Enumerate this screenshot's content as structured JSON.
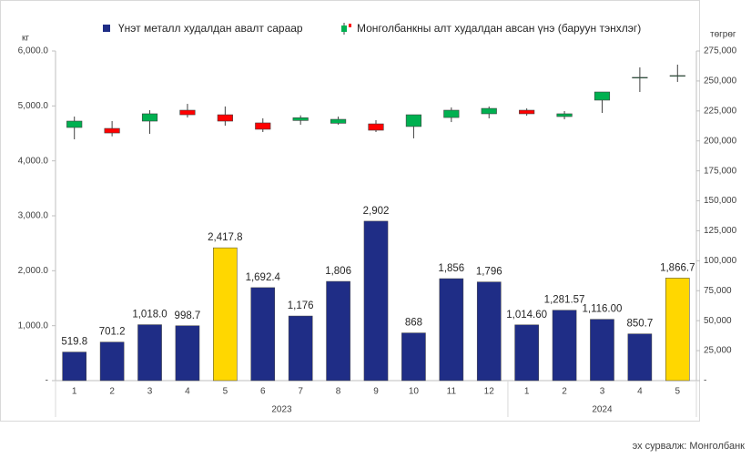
{
  "chart_data": {
    "type": "bar_candlestick",
    "y_axis_label": "кг",
    "y2_axis_label": "төгрөг",
    "source": "эх сурвалж: Монголбанк",
    "categories": [
      "1",
      "2",
      "3",
      "4",
      "5",
      "6",
      "7",
      "8",
      "9",
      "10",
      "11",
      "12",
      "1",
      "2",
      "3",
      "4",
      "5"
    ],
    "x_groups": [
      {
        "label": "2023",
        "size": 12
      },
      {
        "label": "2024",
        "size": 5
      }
    ],
    "series": [
      {
        "name": "Үнэт металл худалдан авалт сараар",
        "type": "bar",
        "color": "#1f2d86",
        "colors": [
          "#1f2d86",
          "#1f2d86",
          "#1f2d86",
          "#1f2d86",
          "#ffd700",
          "#1f2d86",
          "#1f2d86",
          "#1f2d86",
          "#1f2d86",
          "#1f2d86",
          "#1f2d86",
          "#1f2d86",
          "#1f2d86",
          "#1f2d86",
          "#1f2d86",
          "#1f2d86",
          "#ffd700"
        ],
        "values": [
          519.8,
          701.2,
          1018.0,
          998.7,
          2417.8,
          1692.4,
          1176,
          1806,
          2902,
          868,
          1856,
          1796,
          1014.6,
          1281.57,
          1116.0,
          850.7,
          1866.7
        ],
        "value_labels": [
          "519.8",
          "701.2",
          "1,018.0",
          "998.7",
          "2,417.8",
          "1,692.4",
          "1,176",
          "1,806",
          "2,902",
          "868",
          "1,856",
          "1,796",
          "1,014.60",
          "1,281.57",
          "1,116.00",
          "850.7",
          "1,866.7"
        ]
      },
      {
        "name": "Монголбанкны алт худалдан авсан үнэ (баруун тэнхлэг)",
        "type": "candlestick",
        "axis": "y2",
        "up_color": "#00b050",
        "down_color": "#ff0000",
        "open": [
          211200,
          210400,
          216500,
          225600,
          221800,
          215000,
          217000,
          214700,
          214200,
          212000,
          219500,
          222600,
          225600,
          220300,
          234000,
          253000,
          254500
        ],
        "high": [
          220300,
          216500,
          225600,
          230900,
          228700,
          218800,
          221300,
          220300,
          217300,
          221800,
          227900,
          228700,
          227100,
          224900,
          240800,
          261300,
          263600
        ],
        "low": [
          201300,
          203800,
          205900,
          219500,
          212700,
          207400,
          213500,
          213500,
          207400,
          202100,
          215700,
          218800,
          221000,
          218000,
          223300,
          240800,
          249200
        ],
        "close": [
          216500,
          206600,
          222600,
          221800,
          216500,
          209700,
          219300,
          218000,
          208900,
          221800,
          225600,
          227100,
          222600,
          222600,
          240800,
          253000,
          254500
        ]
      }
    ],
    "ylim": [
      0,
      6000
    ],
    "yticks": [
      {
        "value": 0,
        "label": "-"
      },
      {
        "value": 1000,
        "label": "1,000.0"
      },
      {
        "value": 2000,
        "label": "2,000.0"
      },
      {
        "value": 3000,
        "label": "3,000.0"
      },
      {
        "value": 4000,
        "label": "4,000.0"
      },
      {
        "value": 5000,
        "label": "5,000.0"
      },
      {
        "value": 6000,
        "label": "6,000.0"
      }
    ],
    "y2lim": [
      0,
      275000
    ],
    "y2ticks": [
      {
        "value": 0,
        "label": "-"
      },
      {
        "value": 25000,
        "label": "25,000"
      },
      {
        "value": 50000,
        "label": "50,000"
      },
      {
        "value": 75000,
        "label": "75,000"
      },
      {
        "value": 100000,
        "label": "100,000"
      },
      {
        "value": 125000,
        "label": "125,000"
      },
      {
        "value": 150000,
        "label": "150,000"
      },
      {
        "value": 175000,
        "label": "175,000"
      },
      {
        "value": 200000,
        "label": "200,000"
      },
      {
        "value": 225000,
        "label": "225,000"
      },
      {
        "value": 250000,
        "label": "250,000"
      },
      {
        "value": 275000,
        "label": "275,000"
      }
    ]
  }
}
